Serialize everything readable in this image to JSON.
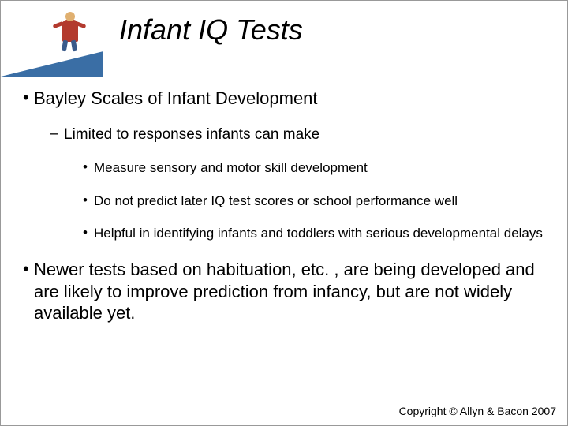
{
  "slide": {
    "title": "Infant IQ Tests",
    "title_fontsize": 36,
    "title_color": "#000000",
    "wedge_color": "#3a6ea5",
    "bullets": {
      "lvl1_fontsize": 22,
      "lvl2_fontsize": 19,
      "lvl3_fontsize": 17,
      "text_color": "#000000",
      "items": [
        {
          "text": "Bayley Scales of Infant Development",
          "children": [
            {
              "text": "Limited to responses infants can make",
              "children": [
                {
                  "text": "Measure sensory and motor skill development"
                },
                {
                  "text": "Do not predict later IQ test scores or school performance well"
                },
                {
                  "text": "Helpful in identifying infants and toddlers with serious developmental delays"
                }
              ]
            }
          ]
        },
        {
          "text": "Newer tests based on habituation, etc. , are being developed and are likely to improve prediction from infancy, but are not widely available yet."
        }
      ]
    },
    "copyright": "Copyright © Allyn & Bacon 2007",
    "copyright_fontsize": 14
  },
  "colors": {
    "background": "#ffffff",
    "border": "#999999"
  }
}
